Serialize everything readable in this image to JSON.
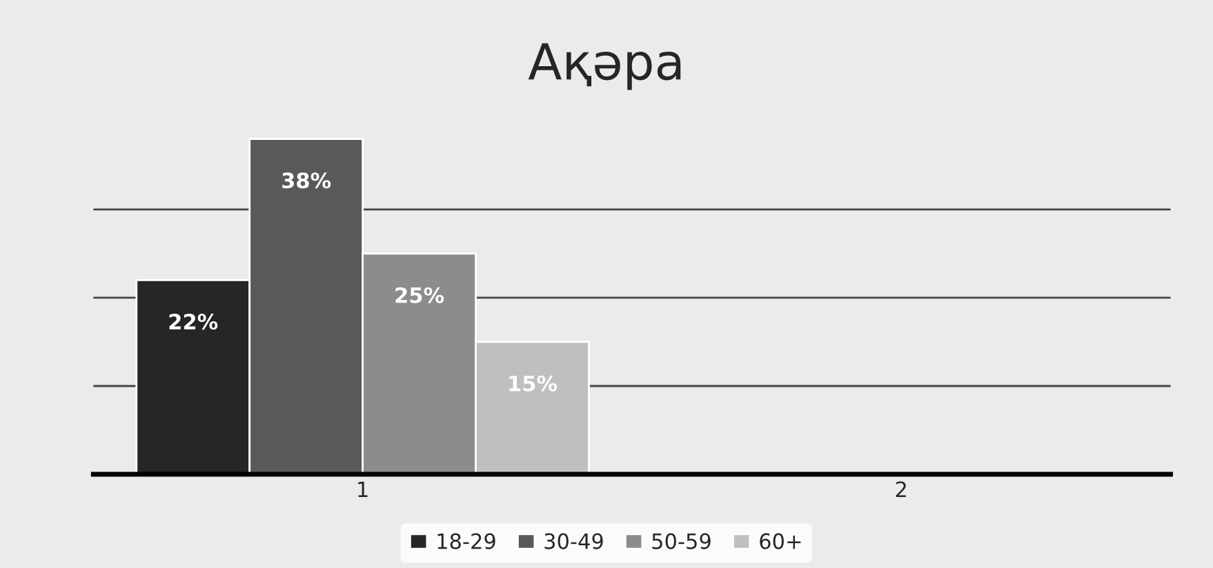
{
  "chart_data": {
    "type": "bar",
    "title": "Ақәра",
    "categories": [
      "1",
      "2"
    ],
    "series": [
      {
        "name": "18-29",
        "color": "#262626",
        "values": [
          22,
          null
        ],
        "value_labels": [
          "22%",
          null
        ]
      },
      {
        "name": "30-49",
        "color": "#595959",
        "values": [
          38,
          null
        ],
        "value_labels": [
          "38%",
          null
        ]
      },
      {
        "name": "50-59",
        "color": "#8c8c8c",
        "values": [
          25,
          null
        ],
        "value_labels": [
          "25%",
          null
        ]
      },
      {
        "name": "60+",
        "color": "#bfbfbf",
        "values": [
          15,
          null
        ],
        "value_labels": [
          "15%",
          null
        ]
      }
    ],
    "yticks": [
      {
        "value": 10,
        "label": null
      },
      {
        "value": 20,
        "label": null
      },
      {
        "value": 30,
        "label": null
      }
    ],
    "grid": "y",
    "legend": "bottom",
    "tick_labels": "x"
  }
}
